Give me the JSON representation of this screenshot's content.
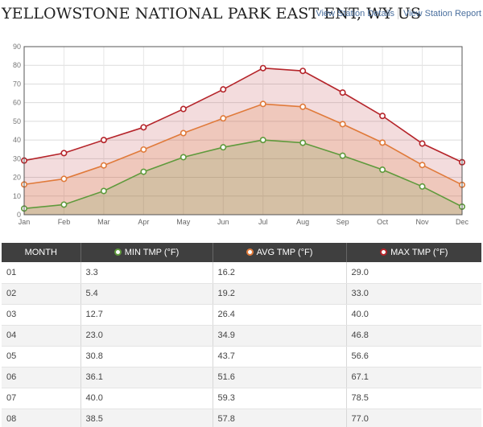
{
  "header": {
    "title": "YELLOWSTONE NATIONAL PARK EAST ENT, WY US",
    "links": [
      "View Station Details",
      "View Station Report"
    ]
  },
  "colors": {
    "min": "#5f9a3c",
    "avg": "#e07a3a",
    "max": "#b5242a",
    "table_header_bg": "#3f3f3f"
  },
  "chart_data": {
    "type": "area",
    "x": [
      "Jan",
      "Feb",
      "Mar",
      "Apr",
      "May",
      "Jun",
      "Jul",
      "Aug",
      "Sep",
      "Oct",
      "Nov",
      "Dec"
    ],
    "ylim": [
      0,
      90
    ],
    "yticks": [
      0,
      10,
      20,
      30,
      40,
      50,
      60,
      70,
      80,
      90
    ],
    "grid": true,
    "series": [
      {
        "key": "min",
        "name": "MIN TMP (°F)",
        "values": [
          3.3,
          5.4,
          12.7,
          23.0,
          30.8,
          36.1,
          40.0,
          38.5,
          31.6,
          24.1,
          15.1,
          4.3
        ]
      },
      {
        "key": "avg",
        "name": "AVG TMP (°F)",
        "values": [
          16.2,
          19.2,
          26.4,
          34.9,
          43.7,
          51.6,
          59.3,
          57.8,
          48.5,
          38.6,
          26.6,
          16.0
        ]
      },
      {
        "key": "max",
        "name": "MAX TMP (°F)",
        "values": [
          29.0,
          33.0,
          40.0,
          46.8,
          56.6,
          67.1,
          78.5,
          77.0,
          65.4,
          52.9,
          38.1,
          28.1
        ]
      }
    ]
  },
  "table": {
    "columns": [
      "MONTH",
      "MIN TMP (°F)",
      "AVG TMP (°F)",
      "MAX TMP (°F)"
    ],
    "rows": [
      [
        "01",
        "3.3",
        "16.2",
        "29.0"
      ],
      [
        "02",
        "5.4",
        "19.2",
        "33.0"
      ],
      [
        "03",
        "12.7",
        "26.4",
        "40.0"
      ],
      [
        "04",
        "23.0",
        "34.9",
        "46.8"
      ],
      [
        "05",
        "30.8",
        "43.7",
        "56.6"
      ],
      [
        "06",
        "36.1",
        "51.6",
        "67.1"
      ],
      [
        "07",
        "40.0",
        "59.3",
        "78.5"
      ],
      [
        "08",
        "38.5",
        "57.8",
        "77.0"
      ]
    ]
  }
}
